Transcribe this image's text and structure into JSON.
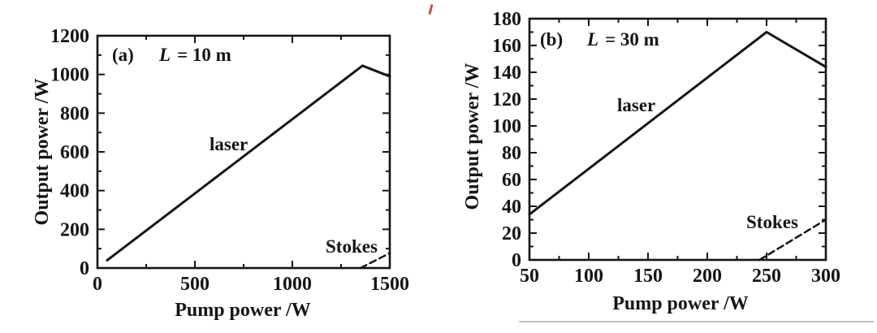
{
  "figure": {
    "background": "#ffffff"
  },
  "artifacts": {
    "red_pen_mark_color": "#b0583e",
    "bottom_separator_color": "#c2c2c2"
  },
  "line_color": "#151515",
  "chart_data": [
    {
      "type": "line",
      "panel_label": "(a)",
      "condition": {
        "symbol": "L",
        "rest": "= 10 m"
      },
      "xlabel": "Pump power /W",
      "ylabel": "Output power /W",
      "xlim": [
        0,
        1500
      ],
      "ylim": [
        0,
        1200
      ],
      "x_ticks": [
        0,
        500,
        1000,
        1500
      ],
      "y_ticks": [
        0,
        200,
        400,
        600,
        800,
        1000,
        1200
      ],
      "grid": false,
      "legend_position": "inline-labels",
      "series": [
        {
          "name": "laser",
          "label": "laser",
          "line_style": "solid",
          "points": [
            [
              50,
              40
            ],
            [
              1360,
              1045
            ],
            [
              1500,
              990
            ]
          ]
        },
        {
          "name": "Stokes",
          "label": "Stokes",
          "line_style": "dashed",
          "points": [
            [
              1350,
              0
            ],
            [
              1500,
              77
            ]
          ]
        }
      ]
    },
    {
      "type": "line",
      "panel_label": "(b)",
      "condition": {
        "symbol": "L",
        "rest": "= 30 m"
      },
      "xlabel": "Pump power /W",
      "ylabel": "Output power /W",
      "xlim": [
        50,
        300
      ],
      "ylim": [
        0,
        180
      ],
      "x_ticks": [
        50,
        100,
        150,
        200,
        250,
        300
      ],
      "y_ticks": [
        0,
        20,
        40,
        60,
        80,
        100,
        120,
        140,
        160,
        180
      ],
      "grid": false,
      "legend_position": "inline-labels",
      "series": [
        {
          "name": "laser",
          "label": "laser",
          "line_style": "solid",
          "points": [
            [
              50,
              34
            ],
            [
              250,
              170
            ],
            [
              300,
              144
            ]
          ]
        },
        {
          "name": "Stokes",
          "label": "Stokes",
          "line_style": "dashed",
          "points": [
            [
              244,
              0
            ],
            [
              300,
              30
            ]
          ]
        }
      ]
    }
  ]
}
